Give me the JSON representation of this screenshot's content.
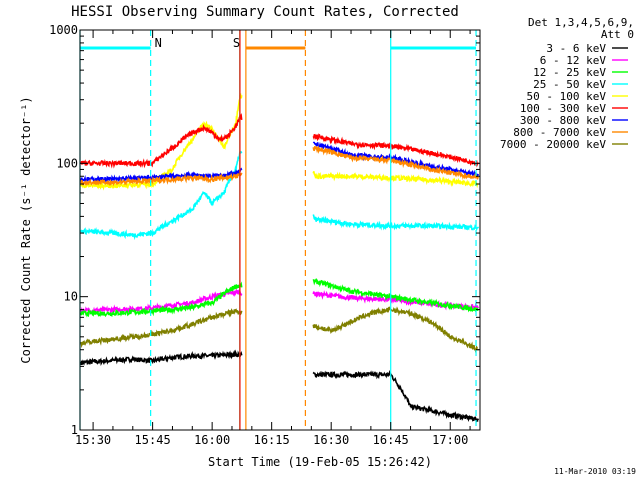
{
  "chart_data": {
    "type": "line",
    "title": "HESSI Observing Summary Count Rates, Corrected",
    "xlabel": "Start Time (19-Feb-05 15:26:42)",
    "ylabel": "Corrected Count Rate (s⁻¹ detector⁻¹)",
    "yscale": "log",
    "ylim": [
      1,
      1000
    ],
    "xlim": [
      "15:26:42",
      "17:07:30"
    ],
    "x_ticks": [
      "15:30",
      "15:45",
      "16:00",
      "16:15",
      "16:30",
      "16:45",
      "17:00"
    ],
    "y_ticks": [
      "1",
      "10",
      "100",
      "1000"
    ],
    "legend_title": [
      "Det 1,3,4,5,6,9,",
      "Att 0"
    ],
    "legend_position": "right",
    "series": [
      {
        "name": "3 - 6 keV",
        "color": "#000000",
        "x": [
          "15:27",
          "15:40",
          "15:45",
          "15:50",
          "15:55",
          "16:00",
          "16:06",
          "16:26",
          "16:35",
          "16:40",
          "16:45",
          "16:50",
          "17:00",
          "17:07"
        ],
        "y": [
          3.2,
          3.4,
          3.3,
          3.5,
          3.6,
          3.6,
          3.7,
          2.6,
          2.6,
          2.6,
          2.6,
          1.5,
          1.3,
          1.2
        ]
      },
      {
        "name": "6 - 12 keV",
        "color": "#ff00ff",
        "x": [
          "15:27",
          "15:35",
          "15:45",
          "15:50",
          "15:55",
          "16:00",
          "16:06",
          "16:26",
          "16:35",
          "16:45",
          "16:55",
          "17:07"
        ],
        "y": [
          7.8,
          8.0,
          8.2,
          8.6,
          9.0,
          10.0,
          10.8,
          10.5,
          9.8,
          9.5,
          8.8,
          8.3
        ]
      },
      {
        "name": "12 - 25 keV",
        "color": "#00ff00",
        "x": [
          "15:27",
          "15:35",
          "15:45",
          "15:50",
          "15:55",
          "16:00",
          "16:06",
          "16:26",
          "16:35",
          "16:45",
          "16:55",
          "17:07"
        ],
        "y": [
          7.5,
          7.5,
          7.8,
          8.0,
          8.3,
          9.0,
          12.0,
          13.0,
          11.0,
          10.0,
          9.0,
          8.0
        ]
      },
      {
        "name": "25 - 50 keV",
        "color": "#00ffff",
        "x": [
          "15:27",
          "15:35",
          "15:40",
          "15:45",
          "15:50",
          "15:55",
          "15:58",
          "16:00",
          "16:03",
          "16:06",
          "16:07",
          "16:26",
          "16:35",
          "16:45",
          "16:55",
          "17:07"
        ],
        "y": [
          31,
          30,
          29,
          30,
          37,
          45,
          60,
          50,
          60,
          90,
          120,
          38,
          35,
          34,
          34,
          33
        ]
      },
      {
        "name": "50 - 100 keV",
        "color": "#ffff00",
        "x": [
          "15:27",
          "15:35",
          "15:45",
          "15:50",
          "15:55",
          "15:58",
          "16:00",
          "16:03",
          "16:06",
          "16:07",
          "16:26",
          "16:35",
          "16:45",
          "16:55",
          "17:07"
        ],
        "y": [
          68,
          68,
          70,
          90,
          150,
          200,
          180,
          130,
          200,
          320,
          80,
          80,
          78,
          75,
          70
        ]
      },
      {
        "name": "100 - 300 keV",
        "color": "#ff0000",
        "x": [
          "15:27",
          "15:35",
          "15:45",
          "15:50",
          "15:55",
          "15:58",
          "16:00",
          "16:02",
          "16:04",
          "16:06",
          "16:07",
          "16:26",
          "16:35",
          "16:45",
          "16:55",
          "17:07"
        ],
        "y": [
          100,
          100,
          100,
          130,
          170,
          185,
          170,
          150,
          160,
          190,
          220,
          160,
          140,
          135,
          120,
          100
        ]
      },
      {
        "name": "300 - 800 keV",
        "color": "#0000ff",
        "x": [
          "15:27",
          "15:35",
          "15:45",
          "15:50",
          "15:55",
          "16:00",
          "16:06",
          "16:26",
          "16:35",
          "16:45",
          "16:55",
          "17:07"
        ],
        "y": [
          76,
          76,
          78,
          80,
          82,
          80,
          84,
          140,
          115,
          110,
          95,
          82
        ]
      },
      {
        "name": "800 - 7000 keV",
        "color": "#ff8800",
        "x": [
          "15:27",
          "15:35",
          "15:45",
          "15:50",
          "15:55",
          "16:00",
          "16:06",
          "16:26",
          "16:35",
          "16:45",
          "16:55",
          "17:07"
        ],
        "y": [
          72,
          72,
          74,
          76,
          78,
          76,
          80,
          130,
          110,
          105,
          90,
          78
        ]
      },
      {
        "name": "7000 - 20000 keV",
        "color": "#808000",
        "x": [
          "15:27",
          "15:35",
          "15:45",
          "15:50",
          "15:55",
          "16:00",
          "16:06",
          "16:26",
          "16:30",
          "16:35",
          "16:40",
          "16:45",
          "16:50",
          "16:55",
          "17:00",
          "17:07"
        ],
        "y": [
          4.5,
          4.8,
          5.2,
          5.6,
          6.2,
          7.0,
          7.8,
          6.0,
          5.5,
          6.5,
          7.5,
          8.0,
          7.5,
          6.5,
          5.0,
          4.0
        ]
      }
    ],
    "annotations": [
      {
        "label": "N",
        "color": "#00ffff"
      },
      {
        "label": "S",
        "color": "#ff8800"
      }
    ],
    "state_bars": [
      {
        "color": "#00ffff",
        "start": "15:26:42",
        "end": "15:44:30"
      },
      {
        "color": "#ff8800",
        "start": "16:08:30",
        "end": "16:23:30"
      },
      {
        "color": "#00ffff",
        "start": "16:45:00",
        "end": "17:06:30"
      }
    ],
    "vlines": [
      {
        "at": "15:26:42",
        "color": "#00ffff",
        "style": "solid"
      },
      {
        "at": "15:44:30",
        "color": "#00ffff",
        "style": "dashed"
      },
      {
        "at": "16:07:00",
        "color": "#00ff00",
        "style": "solid"
      },
      {
        "at": "16:07:00",
        "color": "#00ffff",
        "style": "solid"
      },
      {
        "at": "16:07:00",
        "color": "#ff0000",
        "style": "solid"
      },
      {
        "at": "16:08:30",
        "color": "#ff8800",
        "style": "solid"
      },
      {
        "at": "16:23:30",
        "color": "#ff8800",
        "style": "dashed"
      },
      {
        "at": "16:45:00",
        "color": "#00ffff",
        "style": "solid"
      },
      {
        "at": "17:06:30",
        "color": "#00ffff",
        "style": "dashed"
      }
    ],
    "gap": {
      "start": "16:07:30",
      "end": "16:25:30"
    },
    "timestamp": "11-Mar-2010 03:19"
  }
}
